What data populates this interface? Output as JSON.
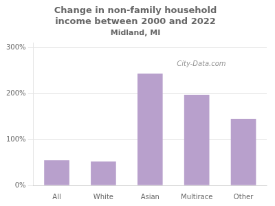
{
  "chart_data": {
    "type": "bar",
    "title": "Change in non-family household\nincome between 2000 and 2022",
    "subtitle": "Midland, MI",
    "categories": [
      "All",
      "White",
      "Asian",
      "Multirace",
      "Other"
    ],
    "values": [
      55,
      52,
      243,
      197,
      145
    ],
    "color": "#b8a0cc",
    "ylim": [
      0,
      310
    ],
    "yticks": [
      {
        "value": 0,
        "label": "0%"
      },
      {
        "value": 100,
        "label": "100%"
      },
      {
        "value": 200,
        "label": "200%"
      },
      {
        "value": 300,
        "label": "300%"
      }
    ],
    "grid": true,
    "annotations": [
      "City-Data.com"
    ]
  }
}
